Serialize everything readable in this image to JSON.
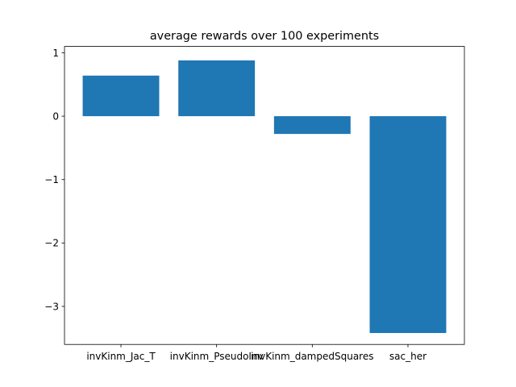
{
  "chart_data": {
    "type": "bar",
    "title": "average rewards over 100 experiments",
    "xlabel": "",
    "ylabel": "",
    "categories": [
      "invKinm_Jac_T",
      "invKinm_PseudoInv",
      "invKinm_dampedSquares",
      "sac_her"
    ],
    "values": [
      0.64,
      0.88,
      -0.28,
      -3.42
    ],
    "ylim": [
      -3.6,
      1.1
    ],
    "yticks": [
      1,
      0,
      -1,
      -2,
      -3
    ],
    "ytick_labels": [
      "1",
      "0",
      "−1",
      "−2",
      "−3"
    ],
    "grid": false,
    "bar_color": "#1f77b4"
  }
}
